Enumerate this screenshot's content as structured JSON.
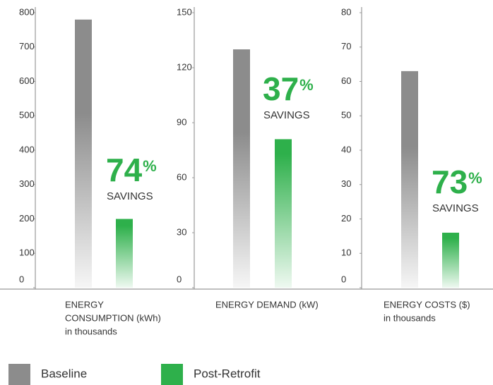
{
  "chart_data": [
    {
      "type": "bar",
      "values": [
        780,
        200
      ],
      "ylim": [
        0,
        800
      ],
      "yticks": [
        0,
        100,
        200,
        300,
        400,
        500,
        600,
        700,
        800
      ],
      "xlabel": [
        "ENERGY",
        "CONSUMPTION  (kWh)",
        "in thousands"
      ],
      "savings": {
        "percent": 74,
        "unit": "%",
        "text": "SAVINGS"
      }
    },
    {
      "type": "bar",
      "values": [
        130,
        81
      ],
      "ylim": [
        0,
        150
      ],
      "yticks": [
        0,
        30,
        60,
        90,
        120,
        150
      ],
      "xlabel": [
        "ENERGY DEMAND (kW)"
      ],
      "savings": {
        "percent": 37,
        "unit": "%",
        "text": "SAVINGS"
      }
    },
    {
      "type": "bar",
      "values": [
        63,
        16
      ],
      "ylim": [
        0,
        80
      ],
      "yticks": [
        0,
        10,
        20,
        30,
        40,
        50,
        60,
        70,
        80
      ],
      "xlabel": [
        "ENERGY COSTS ($)",
        "in thousands"
      ],
      "savings": {
        "percent": 73,
        "unit": "%",
        "text": "SAVINGS"
      }
    }
  ],
  "legend": [
    {
      "name": "Baseline",
      "color": "#8c8c8c"
    },
    {
      "name": "Post-Retrofit",
      "color": "#2eb04b"
    }
  ]
}
